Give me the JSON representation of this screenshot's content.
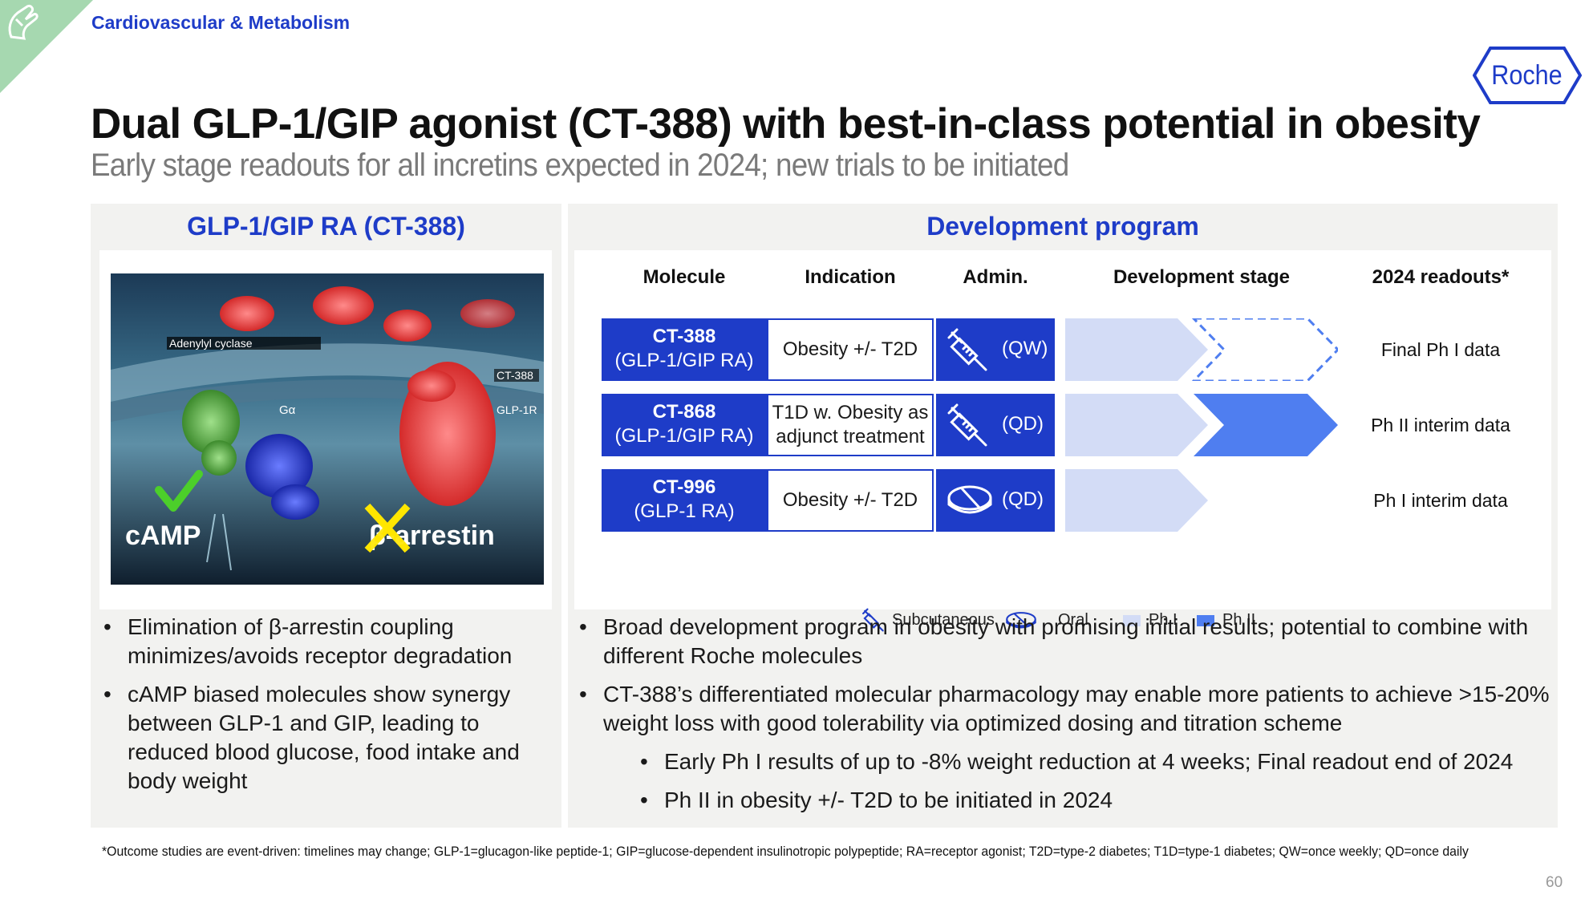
{
  "header": {
    "section": "Cardiovascular & Metabolism",
    "logo_text": "Roche",
    "title": "Dual GLP-1/GIP agonist (CT-388) with best-in-class potential in obesity",
    "subtitle": "Early stage readouts for all incretins expected in 2024; new trials to be initiated"
  },
  "left_panel": {
    "heading": "GLP-1/GIP RA (CT-388)",
    "illustration_labels": {
      "adenylyl": "Adenylyl cyclase",
      "ct388": "CT-388",
      "glp1r": "GLP-1R",
      "galpha": "Gα",
      "camp": "cAMP",
      "barrestin": "β-arrestin"
    },
    "bullets": [
      "Elimination of β-arrestin coupling minimizes/avoids receptor degradation",
      "cAMP biased molecules show synergy between GLP-1 and GIP, leading to reduced blood glucose, food intake and body weight"
    ]
  },
  "right_panel": {
    "heading": "Development program",
    "columns": [
      "Molecule",
      "Indication",
      "Admin.",
      "Development stage",
      "2024 readouts*"
    ],
    "rows": [
      {
        "molecule": "CT-388",
        "class": "(GLP-1/GIP RA)",
        "indication": "Obesity +/- T2D",
        "route": "syringe",
        "frequency": "(QW)",
        "stage": "Ph I",
        "readout": "Final Ph I data"
      },
      {
        "molecule": "CT-868",
        "class": "(GLP-1/GIP RA)",
        "indication": "T1D w. Obesity as adjunct treatment",
        "route": "syringe",
        "frequency": "(QD)",
        "stage": "Ph II",
        "readout": "Ph II interim data"
      },
      {
        "molecule": "CT-996",
        "class": "(GLP-1 RA)",
        "indication": "Obesity +/- T2D",
        "route": "tablet",
        "frequency": "(QD)",
        "stage": "Ph I",
        "readout": "Ph I interim data"
      }
    ],
    "legend": {
      "subcutaneous": "Subcutaneous",
      "oral": "Oral",
      "ph1": "Ph I",
      "ph2": "Ph II"
    },
    "colors": {
      "brand_blue": "#1e3cc8",
      "ph1": "#d3dcf6",
      "ph2": "#4f7ef0"
    },
    "bullets": [
      "Broad development program in obesity with promising initial results; potential to combine with different Roche molecules",
      "CT-388’s differentiated molecular pharmacology may enable more patients to achieve >15-20% weight loss with good tolerability via optimized dosing and titration scheme"
    ],
    "sub_bullets": [
      "Early Ph I results of up to -8% weight reduction at 4 weeks; Final readout end of 2024",
      "Ph II in obesity +/- T2D to be initiated in 2024"
    ]
  },
  "footnote": "*Outcome studies are event-driven: timelines may change; GLP-1=glucagon-like peptide-1; GIP=glucose-dependent insulinotropic polypeptide; RA=receptor agonist; T2D=type-2 diabetes; T1D=type-1 diabetes; QW=once weekly; QD=once daily",
  "page_number": "60"
}
